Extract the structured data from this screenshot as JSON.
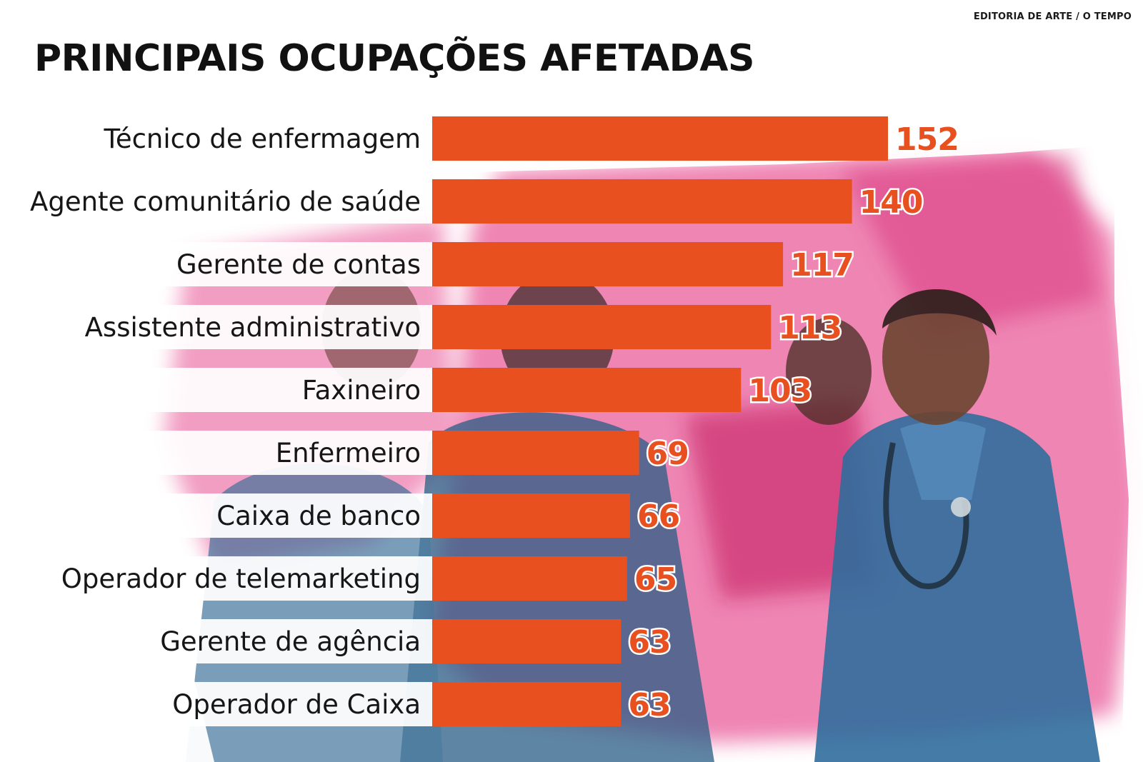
{
  "header": {
    "credit": "EDITORIA DE ARTE / O TEMPO",
    "title": "PRINCIPAIS OCUPAÇÕES AFETADAS"
  },
  "colors": {
    "bar": "#e8501f",
    "value_label": "#e8501f",
    "label_background": "#ffffff",
    "title": "#111111",
    "art_pink": "#e8579a",
    "art_blue": "#2f6e9e"
  },
  "chart_data": {
    "type": "bar",
    "orientation": "horizontal",
    "title": "PRINCIPAIS OCUPAÇÕES AFETADAS",
    "xlabel": "",
    "ylabel": "",
    "grid": false,
    "legend": "none",
    "categories": [
      "Técnico de enfermagem",
      "Agente comunitário de saúde",
      "Gerente de contas",
      "Assistente administrativo",
      "Faxineiro",
      "Enfermeiro",
      "Caixa de banco",
      "Operador de telemarketing",
      "Gerente de agência",
      "Operador de Caixa"
    ],
    "values": [
      152,
      140,
      117,
      113,
      103,
      69,
      66,
      65,
      63,
      63
    ],
    "xlim": [
      0,
      152
    ]
  }
}
